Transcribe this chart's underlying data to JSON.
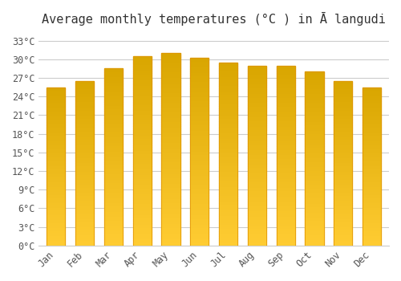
{
  "title": "Average monthly temperatures (°C ) in Ā langudi",
  "months": [
    "Jan",
    "Feb",
    "Mar",
    "Apr",
    "May",
    "Jun",
    "Jul",
    "Aug",
    "Sep",
    "Oct",
    "Nov",
    "Dec"
  ],
  "values": [
    25.5,
    26.5,
    28.5,
    30.5,
    31.0,
    30.2,
    29.5,
    29.0,
    29.0,
    28.0,
    26.5,
    25.5
  ],
  "bar_color": "#FFB300",
  "bar_edge_color": "#E09000",
  "background_color": "#FFFFFF",
  "grid_color": "#CCCCCC",
  "yticks": [
    0,
    3,
    6,
    9,
    12,
    15,
    18,
    21,
    24,
    27,
    30,
    33
  ],
  "ylim": [
    0,
    34
  ],
  "title_fontsize": 11,
  "tick_fontsize": 8.5,
  "font_family": "monospace",
  "bar_width": 0.65
}
